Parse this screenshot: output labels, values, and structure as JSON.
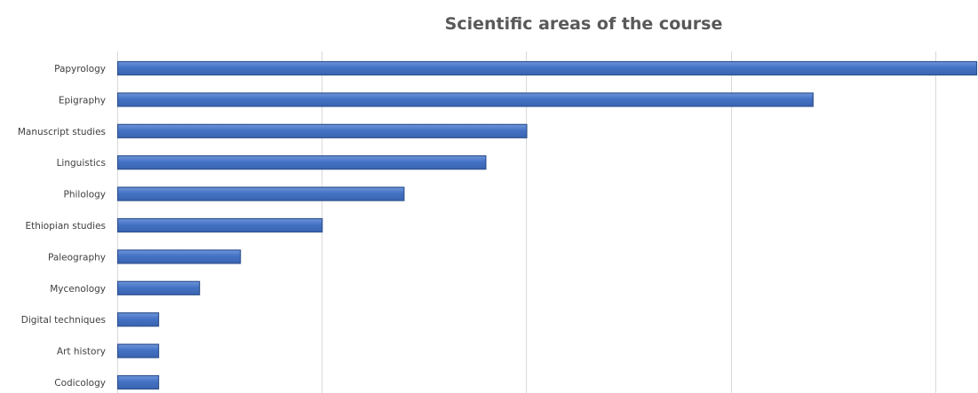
{
  "chart_data": {
    "type": "bar",
    "orientation": "horizontal",
    "title": "Scientific areas of the course",
    "xlabel": "",
    "ylabel": "",
    "categories": [
      "Papyrology",
      "Epigraphy",
      "Manuscript studies",
      "Linguistics",
      "Philology",
      "Ethiopian studies",
      "Paleography",
      "Mycenology",
      "Digital techniques",
      "Art history",
      "Codicology"
    ],
    "values": [
      21,
      17,
      10,
      9,
      7,
      5,
      3,
      2,
      1,
      1,
      1
    ],
    "xlim": [
      0,
      21
    ],
    "grid": true,
    "x_tick_labels_visible": false,
    "legend": "none",
    "colors": {
      "bar_fill": "#4472c4",
      "bar_highlight": "#6f96dc",
      "bar_border": "#2f528f"
    }
  }
}
